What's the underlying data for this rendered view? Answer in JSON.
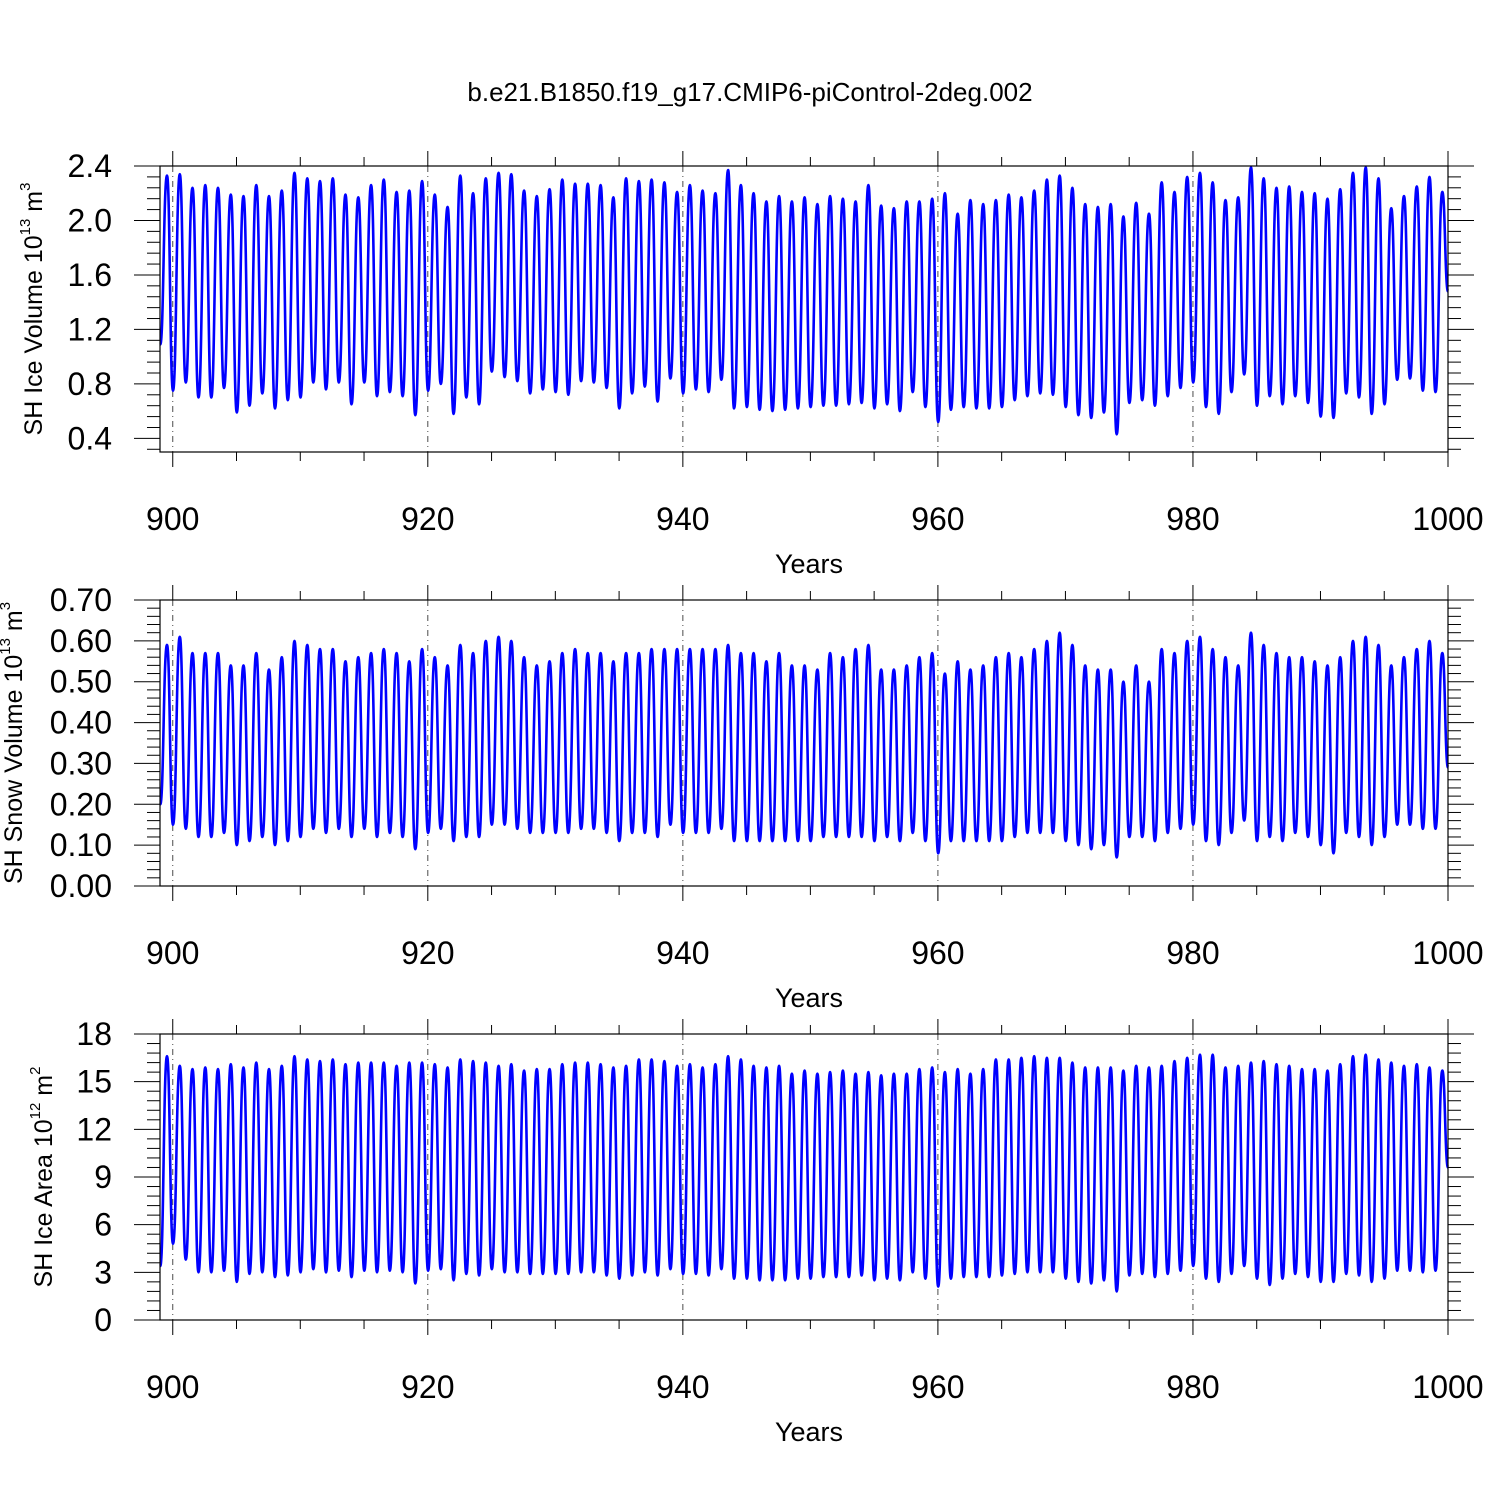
{
  "figure": {
    "title": "b.e21.B1850.f19_g17.CMIP6-piControl-2deg.002",
    "line_color": "#0000ff"
  },
  "chart_data": [
    {
      "type": "line",
      "title": "b.e21.B1850.f19_g17.CMIP6-piControl-2deg.002",
      "xlabel": "Years",
      "ylabel": {
        "prefix": "SH Ice Volume 10",
        "exponent": "13",
        "unit": " m",
        "unit_exponent": "3"
      },
      "xlim": [
        899,
        1000
      ],
      "ylim": [
        0.3,
        2.4
      ],
      "xticks": [
        900,
        920,
        940,
        960,
        980,
        1000
      ],
      "xtick_labels": [
        "900",
        "920",
        "940",
        "960",
        "980",
        "1000"
      ],
      "yticks": [
        0.4,
        0.8,
        1.2,
        1.6,
        2.0,
        2.4
      ],
      "ytick_labels": [
        "0.4",
        "0.8",
        "1.2",
        "1.6",
        "2.0",
        "2.4"
      ],
      "grid": "vertical dashed at major x ticks",
      "series": [
        {
          "color": "#0000ff",
          "x_start": 899.0,
          "cycle_years": 1,
          "peaks": [
            2.33,
            2.34,
            2.24,
            2.26,
            2.24,
            2.19,
            2.18,
            2.26,
            2.18,
            2.22,
            2.35,
            2.31,
            2.29,
            2.31,
            2.19,
            2.17,
            2.26,
            2.3,
            2.21,
            2.22,
            2.29,
            2.19,
            2.1,
            2.33,
            2.2,
            2.31,
            2.35,
            2.34,
            2.22,
            2.18,
            2.23,
            2.3,
            2.27,
            2.27,
            2.26,
            2.17,
            2.31,
            2.29,
            2.3,
            2.28,
            2.21,
            2.26,
            2.22,
            2.2,
            2.37,
            2.26,
            2.2,
            2.14,
            2.18,
            2.14,
            2.17,
            2.12,
            2.18,
            2.16,
            2.14,
            2.26,
            2.11,
            2.09,
            2.14,
            2.14,
            2.16,
            2.2,
            2.05,
            2.15,
            2.12,
            2.15,
            2.19,
            2.17,
            2.22,
            2.3,
            2.33,
            2.24,
            2.12,
            2.1,
            2.12,
            2.03,
            2.13,
            2.05,
            2.28,
            2.21,
            2.32,
            2.35,
            2.28,
            2.15,
            2.17,
            2.39,
            2.31,
            2.24,
            2.25,
            2.21,
            2.2,
            2.16,
            2.23,
            2.35,
            2.39,
            2.31,
            2.09,
            2.18,
            2.25,
            2.32,
            2.21
          ],
          "troughs": [
            1.09,
            0.75,
            0.81,
            0.7,
            0.7,
            0.77,
            0.59,
            0.64,
            0.73,
            0.62,
            0.68,
            0.7,
            0.81,
            0.76,
            0.81,
            0.65,
            0.81,
            0.71,
            0.74,
            0.71,
            0.57,
            0.75,
            0.8,
            0.58,
            0.7,
            0.65,
            0.89,
            0.85,
            0.82,
            0.73,
            0.76,
            0.74,
            0.72,
            0.82,
            0.81,
            0.77,
            0.62,
            0.73,
            0.78,
            0.67,
            0.84,
            0.73,
            0.76,
            0.74,
            0.83,
            0.62,
            0.63,
            0.61,
            0.6,
            0.61,
            0.62,
            0.63,
            0.64,
            0.64,
            0.65,
            0.66,
            0.62,
            0.65,
            0.6,
            0.74,
            0.63,
            0.52,
            0.61,
            0.63,
            0.62,
            0.62,
            0.63,
            0.68,
            0.71,
            0.73,
            0.72,
            0.63,
            0.57,
            0.55,
            0.59,
            0.43,
            0.66,
            0.68,
            0.64,
            0.71,
            0.77,
            0.81,
            0.63,
            0.58,
            0.74,
            0.87,
            0.64,
            0.71,
            0.65,
            0.71,
            0.66,
            0.56,
            0.55,
            0.73,
            0.7,
            0.58,
            0.65,
            0.83,
            0.84,
            0.75,
            0.74
          ],
          "end_value": 1.48
        }
      ]
    },
    {
      "type": "line",
      "xlabel": "Years",
      "ylabel": {
        "prefix": "SH Snow Volume 10",
        "exponent": "13",
        "unit": " m",
        "unit_exponent": "3"
      },
      "xlim": [
        899,
        1000
      ],
      "ylim": [
        0.0,
        0.7
      ],
      "xticks": [
        900,
        920,
        940,
        960,
        980,
        1000
      ],
      "xtick_labels": [
        "900",
        "920",
        "940",
        "960",
        "980",
        "1000"
      ],
      "yticks": [
        0.0,
        0.1,
        0.2,
        0.3,
        0.4,
        0.5,
        0.6,
        0.7
      ],
      "ytick_labels": [
        "0.00",
        "0.10",
        "0.20",
        "0.30",
        "0.40",
        "0.50",
        "0.60",
        "0.70"
      ],
      "grid": "vertical dashed at major x ticks",
      "series": [
        {
          "color": "#0000ff",
          "x_start": 899.0,
          "cycle_years": 1,
          "peaks": [
            0.59,
            0.61,
            0.57,
            0.57,
            0.57,
            0.54,
            0.54,
            0.57,
            0.53,
            0.56,
            0.6,
            0.59,
            0.58,
            0.58,
            0.55,
            0.56,
            0.57,
            0.58,
            0.57,
            0.55,
            0.58,
            0.56,
            0.54,
            0.59,
            0.57,
            0.6,
            0.61,
            0.6,
            0.56,
            0.54,
            0.55,
            0.57,
            0.58,
            0.57,
            0.57,
            0.55,
            0.57,
            0.57,
            0.58,
            0.58,
            0.58,
            0.58,
            0.58,
            0.58,
            0.59,
            0.57,
            0.57,
            0.55,
            0.57,
            0.54,
            0.54,
            0.53,
            0.57,
            0.56,
            0.58,
            0.59,
            0.53,
            0.53,
            0.54,
            0.56,
            0.57,
            0.52,
            0.55,
            0.53,
            0.54,
            0.56,
            0.57,
            0.56,
            0.58,
            0.6,
            0.62,
            0.59,
            0.54,
            0.53,
            0.53,
            0.5,
            0.54,
            0.5,
            0.58,
            0.57,
            0.6,
            0.61,
            0.58,
            0.56,
            0.54,
            0.62,
            0.59,
            0.57,
            0.56,
            0.56,
            0.55,
            0.54,
            0.56,
            0.6,
            0.61,
            0.59,
            0.54,
            0.56,
            0.58,
            0.6,
            0.57
          ],
          "troughs": [
            0.2,
            0.15,
            0.14,
            0.12,
            0.12,
            0.13,
            0.1,
            0.11,
            0.12,
            0.1,
            0.11,
            0.12,
            0.14,
            0.13,
            0.14,
            0.12,
            0.14,
            0.12,
            0.13,
            0.12,
            0.09,
            0.13,
            0.14,
            0.11,
            0.12,
            0.12,
            0.15,
            0.15,
            0.14,
            0.13,
            0.13,
            0.13,
            0.13,
            0.14,
            0.14,
            0.13,
            0.11,
            0.13,
            0.13,
            0.12,
            0.15,
            0.13,
            0.13,
            0.13,
            0.14,
            0.11,
            0.11,
            0.11,
            0.11,
            0.11,
            0.11,
            0.11,
            0.12,
            0.12,
            0.12,
            0.12,
            0.11,
            0.12,
            0.11,
            0.13,
            0.11,
            0.08,
            0.11,
            0.11,
            0.11,
            0.11,
            0.11,
            0.12,
            0.13,
            0.13,
            0.13,
            0.11,
            0.1,
            0.09,
            0.1,
            0.07,
            0.12,
            0.12,
            0.11,
            0.13,
            0.14,
            0.15,
            0.11,
            0.1,
            0.13,
            0.16,
            0.11,
            0.12,
            0.11,
            0.13,
            0.12,
            0.1,
            0.08,
            0.13,
            0.12,
            0.1,
            0.12,
            0.15,
            0.15,
            0.14,
            0.14
          ],
          "end_value": 0.29
        }
      ]
    },
    {
      "type": "line",
      "xlabel": "Years",
      "ylabel": {
        "prefix": "SH Ice Area 10",
        "exponent": "12",
        "unit": " m",
        "unit_exponent": "2"
      },
      "xlim": [
        899,
        1000
      ],
      "ylim": [
        0,
        18
      ],
      "xticks": [
        900,
        920,
        940,
        960,
        980,
        1000
      ],
      "xtick_labels": [
        "900",
        "920",
        "940",
        "960",
        "980",
        "1000"
      ],
      "yticks": [
        0,
        3,
        6,
        9,
        12,
        15,
        18
      ],
      "ytick_labels": [
        "0",
        "3",
        "6",
        "9",
        "12",
        "15",
        "18"
      ],
      "grid": "vertical dashed at major x ticks",
      "series": [
        {
          "color": "#0000ff",
          "x_start": 899.0,
          "cycle_years": 1,
          "peaks": [
            16.6,
            16.0,
            15.8,
            15.9,
            15.8,
            16.1,
            15.9,
            16.2,
            15.8,
            16.0,
            16.6,
            16.4,
            16.3,
            16.4,
            16.1,
            16.2,
            16.2,
            16.2,
            16.0,
            16.2,
            16.2,
            16.1,
            15.9,
            16.4,
            16.3,
            16.2,
            16.0,
            16.1,
            15.7,
            15.8,
            15.8,
            16.1,
            16.2,
            16.2,
            16.1,
            15.9,
            16.0,
            16.4,
            16.4,
            16.3,
            16.0,
            16.1,
            15.9,
            16.1,
            16.6,
            16.4,
            16.0,
            15.9,
            16.0,
            15.5,
            15.7,
            15.5,
            15.6,
            15.7,
            15.5,
            15.6,
            15.4,
            15.5,
            15.5,
            15.8,
            15.9,
            15.6,
            15.8,
            15.5,
            15.8,
            16.4,
            16.4,
            16.5,
            16.6,
            16.5,
            16.5,
            16.2,
            15.9,
            15.9,
            15.9,
            15.7,
            16.0,
            15.9,
            16.0,
            16.3,
            16.5,
            16.7,
            16.7,
            15.9,
            16.0,
            16.2,
            16.3,
            16.1,
            16.0,
            15.8,
            15.8,
            15.7,
            16.1,
            16.6,
            16.7,
            16.4,
            16.2,
            16.0,
            16.1,
            15.9,
            15.7
          ],
          "troughs": [
            3.4,
            4.8,
            3.8,
            3.0,
            3.0,
            3.1,
            2.4,
            2.9,
            3.0,
            2.7,
            2.8,
            3.0,
            3.2,
            3.0,
            3.1,
            2.7,
            3.1,
            3.0,
            3.1,
            3.0,
            2.3,
            3.1,
            3.2,
            2.5,
            2.9,
            2.8,
            3.2,
            3.0,
            3.0,
            2.9,
            2.9,
            2.9,
            2.9,
            3.0,
            3.0,
            2.8,
            2.6,
            2.8,
            3.0,
            2.8,
            3.2,
            2.9,
            2.9,
            2.8,
            3.2,
            2.6,
            2.6,
            2.5,
            2.5,
            2.5,
            2.6,
            2.6,
            2.7,
            2.7,
            2.7,
            2.8,
            2.5,
            2.6,
            2.5,
            3.0,
            2.6,
            2.1,
            2.6,
            2.7,
            2.7,
            2.7,
            2.8,
            2.9,
            3.0,
            3.0,
            3.0,
            2.6,
            2.4,
            2.3,
            2.5,
            1.8,
            2.8,
            2.9,
            2.7,
            2.9,
            3.1,
            3.4,
            2.6,
            2.4,
            2.9,
            3.4,
            2.6,
            2.2,
            2.6,
            2.9,
            2.7,
            2.4,
            2.4,
            2.9,
            2.8,
            2.4,
            2.6,
            3.1,
            3.1,
            3.0,
            3.1
          ],
          "end_value": 9.6
        }
      ]
    }
  ]
}
